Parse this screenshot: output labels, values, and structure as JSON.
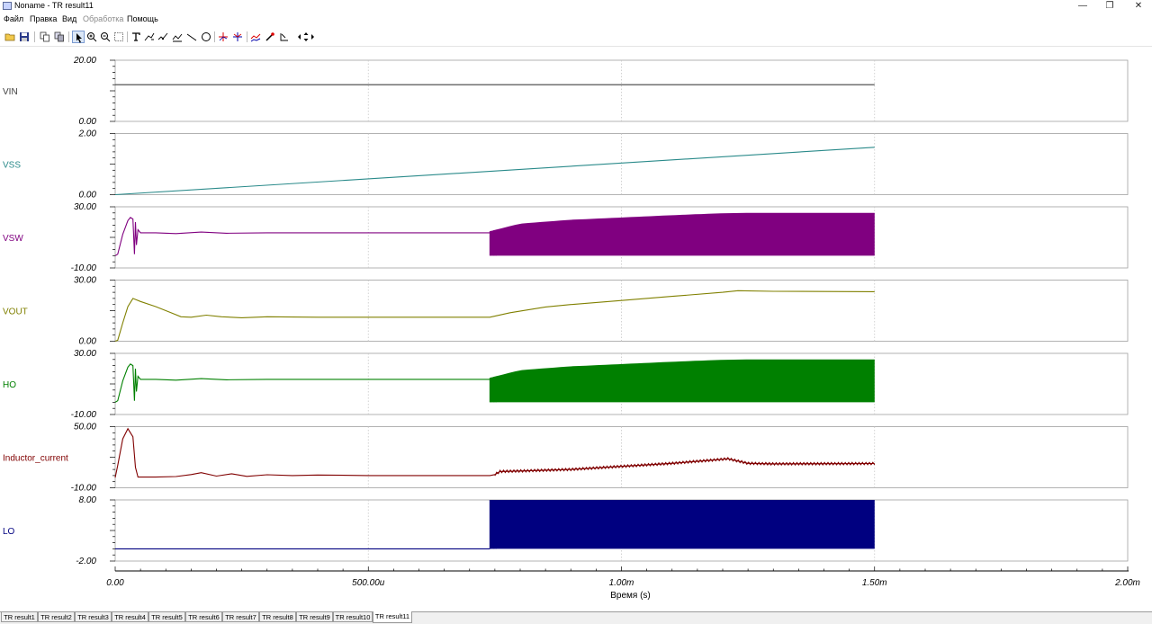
{
  "window": {
    "title": "Noname - TR result11",
    "minimize": "—",
    "restore": "❐",
    "close": "✕"
  },
  "menu": [
    {
      "label": "Файл",
      "enabled": true
    },
    {
      "label": "Правка",
      "enabled": true
    },
    {
      "label": "Вид",
      "enabled": true
    },
    {
      "label": "Обработка",
      "enabled": false
    },
    {
      "label": "Помощь",
      "enabled": true
    }
  ],
  "toolbar": [
    {
      "name": "open-folder-icon",
      "group": 0
    },
    {
      "name": "save-icon",
      "group": 0
    },
    {
      "name": "copy-icon",
      "group": 1
    },
    {
      "name": "copy-all-icon",
      "group": 1
    },
    {
      "name": "pointer-icon",
      "group": 2,
      "selected": true
    },
    {
      "name": "zoom-in-icon",
      "group": 2
    },
    {
      "name": "zoom-out-icon",
      "group": 2
    },
    {
      "name": "zoom-window-icon",
      "group": 2
    },
    {
      "name": "text-icon",
      "group": 3
    },
    {
      "name": "curve-label-icon",
      "group": 3
    },
    {
      "name": "point-label-icon",
      "group": 3
    },
    {
      "name": "hbar-icon",
      "group": 3
    },
    {
      "name": "line-icon",
      "group": 3
    },
    {
      "name": "circle-icon",
      "group": 3
    },
    {
      "name": "cursor-a-icon",
      "group": 4
    },
    {
      "name": "cursor-b-icon",
      "group": 4
    },
    {
      "name": "curve-add-icon",
      "group": 5
    },
    {
      "name": "probe-icon",
      "group": 5
    },
    {
      "name": "step-icon",
      "group": 5
    },
    {
      "name": "scroll-arrows-icon",
      "group": 5,
      "wide": true
    }
  ],
  "colors": {
    "grid": "#c8c8c8",
    "frame": "#a0a0a0"
  },
  "chart_data": {
    "type": "line",
    "xlabel": "Время (s)",
    "xlim": [
      0,
      0.002
    ],
    "x_ticks": [
      0,
      0.0005,
      0.001,
      0.0015,
      0.002
    ],
    "x_tick_labels": [
      "0.00",
      "500.00u",
      "1.00m",
      "1.50m",
      "2.00m"
    ],
    "x_data_end": 0.0015,
    "grid": "dotted vertical at x ticks",
    "channels": [
      {
        "name": "VIN",
        "color": "#404040",
        "ylim": [
          0,
          20
        ],
        "ytick_labels": [
          "20.00",
          "0.00"
        ],
        "points": [
          [
            0,
            12
          ],
          [
            0.0015,
            12
          ]
        ]
      },
      {
        "name": "VSS",
        "color": "#2a8a8a",
        "ylim": [
          0,
          2
        ],
        "ytick_labels": [
          "2.00",
          "0.00"
        ],
        "points": [
          [
            0,
            0
          ],
          [
            0.0015,
            1.55
          ]
        ]
      },
      {
        "name": "VSW",
        "color": "#800080",
        "ylim": [
          -10,
          30
        ],
        "ytick_labels": [
          "30.00",
          "-10.00"
        ],
        "points": [
          [
            0,
            -2
          ],
          [
            5e-06,
            -1
          ],
          [
            1.5e-05,
            12
          ],
          [
            2.5e-05,
            21
          ],
          [
            3e-05,
            23
          ],
          [
            3.5e-05,
            22
          ],
          [
            3.8e-05,
            -1
          ],
          [
            4e-05,
            20
          ],
          [
            4.2e-05,
            5
          ],
          [
            4.5e-05,
            15
          ],
          [
            5e-05,
            13
          ],
          [
            8e-05,
            13
          ],
          [
            0.00012,
            12.5
          ],
          [
            0.00017,
            13.5
          ],
          [
            0.00022,
            12.7
          ],
          [
            0.0003,
            13
          ],
          [
            0.0005,
            13
          ],
          [
            0.00074,
            13
          ]
        ],
        "switching": {
          "from": 0.00074,
          "to": 0.0015,
          "low": -2,
          "upper": [
            [
              0.00074,
              14
            ],
            [
              0.0008,
              19
            ],
            [
              0.0009,
              21.5
            ],
            [
              0.001,
              23
            ],
            [
              0.0011,
              24.5
            ],
            [
              0.0012,
              25.8
            ],
            [
              0.00125,
              26
            ],
            [
              0.0015,
              26
            ]
          ]
        }
      },
      {
        "name": "VOUT",
        "color": "#808000",
        "ylim": [
          0,
          30
        ],
        "ytick_labels": [
          "30.00",
          "0.00"
        ],
        "points": [
          [
            0,
            0
          ],
          [
            5e-06,
            0.5
          ],
          [
            1.5e-05,
            9
          ],
          [
            2.5e-05,
            17
          ],
          [
            3.5e-05,
            21
          ],
          [
            5e-05,
            19.5
          ],
          [
            8e-05,
            17
          ],
          [
            0.00011,
            14
          ],
          [
            0.00013,
            12
          ],
          [
            0.00015,
            11.8
          ],
          [
            0.00018,
            12.8
          ],
          [
            0.00021,
            12
          ],
          [
            0.00025,
            11.5
          ],
          [
            0.0003,
            12
          ],
          [
            0.0004,
            11.8
          ],
          [
            0.0005,
            11.8
          ],
          [
            0.00074,
            11.8
          ],
          [
            0.00078,
            14
          ],
          [
            0.00085,
            16.8
          ],
          [
            0.0009,
            18
          ],
          [
            0.001,
            20
          ],
          [
            0.0011,
            22
          ],
          [
            0.0012,
            24
          ],
          [
            0.00123,
            24.8
          ],
          [
            0.0013,
            24.5
          ],
          [
            0.0015,
            24.3
          ]
        ]
      },
      {
        "name": "HO",
        "color": "#008000",
        "ylim": [
          -10,
          30
        ],
        "ytick_labels": [
          "30.00",
          "-10.00"
        ],
        "points": [
          [
            0,
            -2
          ],
          [
            5e-06,
            -1
          ],
          [
            1.5e-05,
            12
          ],
          [
            2.5e-05,
            21
          ],
          [
            3e-05,
            23
          ],
          [
            3.5e-05,
            22
          ],
          [
            3.8e-05,
            -1
          ],
          [
            4e-05,
            20
          ],
          [
            4.2e-05,
            5
          ],
          [
            4.5e-05,
            15
          ],
          [
            5e-05,
            13
          ],
          [
            8e-05,
            13
          ],
          [
            0.00012,
            12.5
          ],
          [
            0.00017,
            13.5
          ],
          [
            0.00022,
            12.7
          ],
          [
            0.0003,
            13
          ],
          [
            0.0005,
            13
          ],
          [
            0.00074,
            13
          ]
        ],
        "switching": {
          "from": 0.00074,
          "to": 0.0015,
          "low": -2,
          "upper": [
            [
              0.00074,
              14
            ],
            [
              0.0008,
              19
            ],
            [
              0.0009,
              21.5
            ],
            [
              0.001,
              23
            ],
            [
              0.0011,
              24.5
            ],
            [
              0.0012,
              25.8
            ],
            [
              0.00125,
              26
            ],
            [
              0.0015,
              26
            ]
          ]
        }
      },
      {
        "name": "Inductor_current",
        "color": "#800000",
        "ylim": [
          -10,
          50
        ],
        "ytick_labels": [
          "50.00",
          "-10.00"
        ],
        "points": [
          [
            0,
            0
          ],
          [
            5e-06,
            12
          ],
          [
            1.5e-05,
            38
          ],
          [
            2.5e-05,
            48
          ],
          [
            3.5e-05,
            40
          ],
          [
            4e-05,
            10
          ],
          [
            4.5e-05,
            0.5
          ],
          [
            8e-05,
            0.5
          ],
          [
            0.00012,
            1
          ],
          [
            0.00015,
            3
          ],
          [
            0.00017,
            4.8
          ],
          [
            0.0002,
            1.5
          ],
          [
            0.00023,
            3.8
          ],
          [
            0.00026,
            1.2
          ],
          [
            0.0003,
            2.8
          ],
          [
            0.00035,
            2
          ],
          [
            0.0004,
            2.5
          ],
          [
            0.0005,
            2
          ],
          [
            0.00074,
            2
          ],
          [
            0.00075,
            3
          ],
          [
            0.00076,
            6
          ],
          [
            0.0008,
            6.5
          ],
          [
            0.0009,
            8
          ],
          [
            0.001,
            11
          ],
          [
            0.0011,
            14
          ],
          [
            0.0012,
            18
          ],
          [
            0.00121,
            18.5
          ],
          [
            0.00125,
            14
          ],
          [
            0.0013,
            13.5
          ],
          [
            0.0015,
            13.8
          ]
        ],
        "noise": {
          "from": 0.00075,
          "to": 0.0015,
          "amplitude": 1.2
        }
      },
      {
        "name": "LO",
        "color": "#000080",
        "ylim": [
          -2,
          8
        ],
        "ytick_labels": [
          "8.00",
          "-2.00"
        ],
        "points": [
          [
            0,
            0
          ],
          [
            0.00074,
            0
          ]
        ],
        "switching": {
          "from": 0.00074,
          "to": 0.0015,
          "low": 0,
          "upper": [
            [
              0.00074,
              8
            ],
            [
              0.0015,
              8
            ]
          ]
        }
      }
    ]
  },
  "tabs": [
    "TR result1",
    "TR result2",
    "TR result3",
    "TR result4",
    "TR result5",
    "TR result6",
    "TR result7",
    "TR result8",
    "TR result9",
    "TR result10",
    "TR result11"
  ],
  "active_tab": "TR result11"
}
